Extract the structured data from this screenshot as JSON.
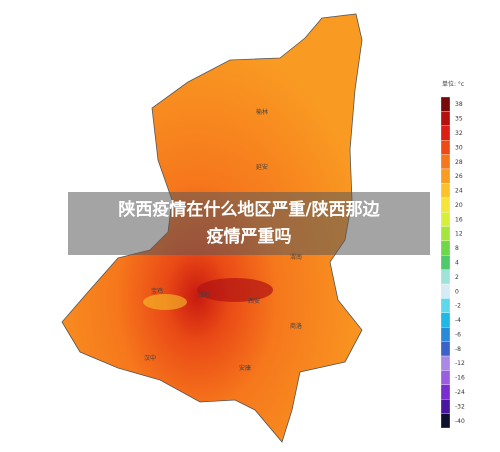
{
  "title_lines": [
    "陕西疫情在什么地区严重/陕西那边",
    "疫情严重吗"
  ],
  "legend": {
    "unit": "单位: °c",
    "items": [
      {
        "value": 38,
        "color": "#7a0a0a"
      },
      {
        "value": 35,
        "color": "#b51010"
      },
      {
        "value": 32,
        "color": "#dc1f12"
      },
      {
        "value": 30,
        "color": "#ef4a16"
      },
      {
        "value": 28,
        "color": "#f6781c"
      },
      {
        "value": 26,
        "color": "#f99c22"
      },
      {
        "value": 24,
        "color": "#fbc22a"
      },
      {
        "value": 20,
        "color": "#f5e43a"
      },
      {
        "value": 16,
        "color": "#d7ef3a"
      },
      {
        "value": 12,
        "color": "#a6e63c"
      },
      {
        "value": 8,
        "color": "#6fd848"
      },
      {
        "value": 4,
        "color": "#4fca6a"
      },
      {
        "value": 2,
        "color": "#9fe3d8"
      },
      {
        "value": 0,
        "color": "#d6ecf2"
      },
      {
        "value": -2,
        "color": "#5fd8ee"
      },
      {
        "value": -4,
        "color": "#22b8e6"
      },
      {
        "value": -6,
        "color": "#2a8ad8"
      },
      {
        "value": -8,
        "color": "#3a62c8"
      },
      {
        "value": -12,
        "color": "#a889e6"
      },
      {
        "value": -16,
        "color": "#9a5ee0"
      },
      {
        "value": -24,
        "color": "#7a2ed0"
      },
      {
        "value": -32,
        "color": "#4a16a0"
      },
      {
        "value": -40,
        "color": "#0e1030"
      }
    ]
  },
  "cities": [
    "榆林",
    "延安",
    "渭南",
    "宝鸡",
    "咸阳",
    "西安",
    "商洛",
    "汉中",
    "安康"
  ]
}
